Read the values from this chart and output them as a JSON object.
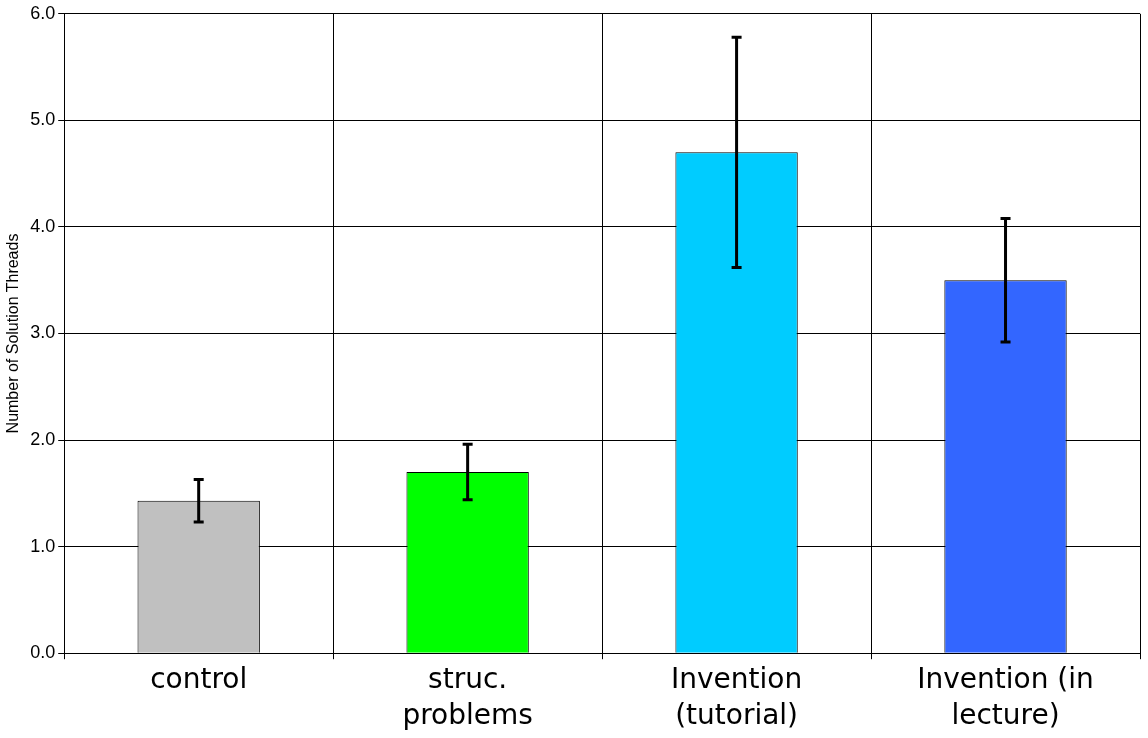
{
  "chart_data": {
    "type": "bar",
    "ylabel": "Number of Solution Threads",
    "categories": [
      "control",
      "struc. problems",
      "Invention (tutorial)",
      "Invention (in lecture)"
    ],
    "values": [
      1.43,
      1.7,
      4.7,
      3.5
    ],
    "colors": [
      "#c0c0c0",
      "#00ff00",
      "#00ccff",
      "#3366ff"
    ],
    "errors": [
      0.2,
      0.26,
      1.08,
      0.58
    ],
    "ylim": [
      0,
      6
    ],
    "yticks": [
      {
        "value": 0,
        "label": "0.0"
      },
      {
        "value": 1,
        "label": "1.0"
      },
      {
        "value": 2,
        "label": "2.0"
      },
      {
        "value": 3,
        "label": "3.0"
      },
      {
        "value": 4,
        "label": "4.0"
      },
      {
        "value": 5,
        "label": "5.0"
      },
      {
        "value": 6,
        "label": "6.0"
      }
    ],
    "grid": true,
    "legend": false
  }
}
